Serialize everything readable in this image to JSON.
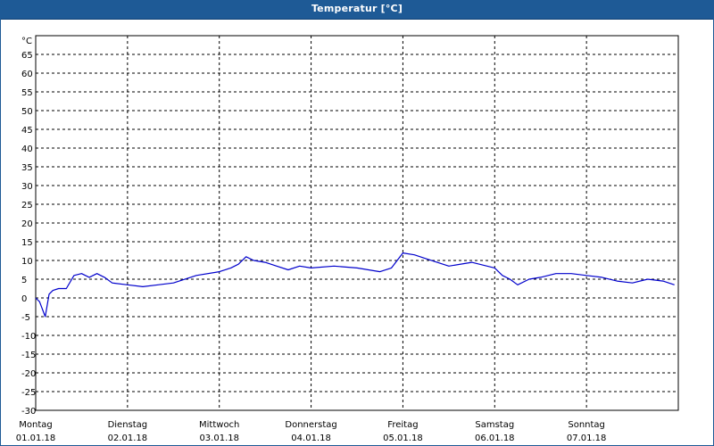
{
  "window": {
    "title": "Temperatur [°C]"
  },
  "chart_data": {
    "type": "line",
    "title": "Temperatur [°C]",
    "ylabel": "°C",
    "ylim": [
      -30,
      70
    ],
    "yticks": [
      65,
      60,
      55,
      50,
      45,
      40,
      35,
      30,
      25,
      20,
      15,
      10,
      5,
      0,
      -5,
      -10,
      -15,
      -20,
      -25,
      -30
    ],
    "grid": true,
    "xlim": [
      "2018-01-01T00:00",
      "2018-01-08T00:00"
    ],
    "x_ticks": [
      {
        "day": "Montag",
        "date": "01.01.18"
      },
      {
        "day": "Dienstag",
        "date": "02.01.18"
      },
      {
        "day": "Mittwoch",
        "date": "03.01.18"
      },
      {
        "day": "Donnerstag",
        "date": "04.01.18"
      },
      {
        "day": "Freitag",
        "date": "05.01.18"
      },
      {
        "day": "Samstag",
        "date": "06.01.18"
      },
      {
        "day": "Sonntag",
        "date": "07.01.18"
      }
    ],
    "series": [
      {
        "color": "#0000cc",
        "x": [
          "2018-01-01T00:00",
          "2018-01-01T01:00",
          "2018-01-01T02:30",
          "2018-01-01T03:30",
          "2018-01-01T04:30",
          "2018-01-01T06:00",
          "2018-01-01T08:00",
          "2018-01-01T10:00",
          "2018-01-01T12:00",
          "2018-01-01T14:00",
          "2018-01-01T16:00",
          "2018-01-01T18:00",
          "2018-01-01T20:00",
          "2018-01-02T00:00",
          "2018-01-02T04:00",
          "2018-01-02T08:00",
          "2018-01-02T12:00",
          "2018-01-02T18:00",
          "2018-01-03T00:00",
          "2018-01-03T03:00",
          "2018-01-03T05:00",
          "2018-01-03T07:00",
          "2018-01-03T09:00",
          "2018-01-03T12:00",
          "2018-01-03T15:00",
          "2018-01-03T18:00",
          "2018-01-03T21:00",
          "2018-01-04T00:00",
          "2018-01-04T06:00",
          "2018-01-04T12:00",
          "2018-01-04T18:00",
          "2018-01-04T21:00",
          "2018-01-05T00:00",
          "2018-01-05T03:00",
          "2018-01-05T06:00",
          "2018-01-05T12:00",
          "2018-01-05T18:00",
          "2018-01-06T00:00",
          "2018-01-06T02:00",
          "2018-01-06T04:00",
          "2018-01-06T06:00",
          "2018-01-06T09:00",
          "2018-01-06T12:00",
          "2018-01-06T16:00",
          "2018-01-06T20:00",
          "2018-01-07T00:00",
          "2018-01-07T04:00",
          "2018-01-07T08:00",
          "2018-01-07T12:00",
          "2018-01-07T16:00",
          "2018-01-07T20:00",
          "2018-01-07T23:00"
        ],
        "y": [
          0,
          -1,
          -5,
          1,
          2,
          2.5,
          2.5,
          6,
          6.5,
          5.5,
          6.5,
          5.5,
          4,
          3.5,
          3,
          3.5,
          4,
          6,
          7,
          8,
          9,
          11,
          10,
          9.5,
          8.5,
          7.5,
          8.5,
          8,
          8.5,
          8,
          7,
          8,
          12,
          11.5,
          10.5,
          8.5,
          9.5,
          8,
          6,
          5,
          3.5,
          5,
          5.5,
          6.5,
          6.5,
          6,
          5.5,
          4.5,
          4,
          5,
          4.5,
          3.5
        ]
      }
    ]
  }
}
